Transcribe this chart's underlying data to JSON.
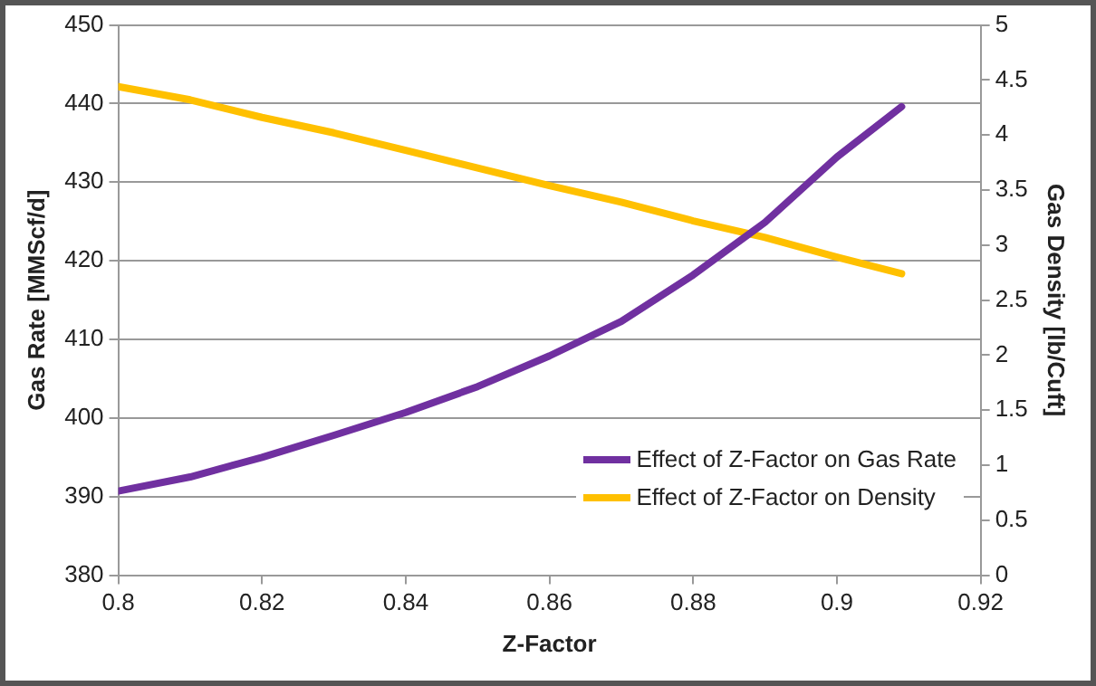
{
  "chart_data": {
    "type": "line",
    "xlabel": "Z-Factor",
    "ylabel": "Gas Rate [MMScf/d]",
    "y2label": "Gas Density [lb/Cuft]",
    "x": [
      0.8,
      0.81,
      0.82,
      0.83,
      0.84,
      0.85,
      0.86,
      0.87,
      0.88,
      0.89,
      0.9,
      0.909
    ],
    "series": [
      {
        "name": "Effect of Z-Factor on Gas Rate",
        "color": "#7030a0",
        "values": [
          390.7,
          392.5,
          395.0,
          397.8,
          400.7,
          404.0,
          407.9,
          412.3,
          418.2,
          424.9,
          433.2,
          439.6
        ]
      },
      {
        "name": "Effect of Z-Factor on Density",
        "color": "#ffc000",
        "axis": "y2",
        "values": [
          4.44,
          4.32,
          4.16,
          4.02,
          3.86,
          3.7,
          3.54,
          3.39,
          3.22,
          3.07,
          2.89,
          2.74
        ]
      }
    ],
    "xlim": [
      0.8,
      0.92
    ],
    "xticks": [
      0.8,
      0.82,
      0.84,
      0.86,
      0.88,
      0.9,
      0.92
    ],
    "ylim": [
      380,
      450
    ],
    "yticks": [
      380,
      390,
      400,
      410,
      420,
      430,
      440,
      450
    ],
    "y2lim": [
      0,
      5
    ],
    "y2ticks": [
      0,
      0.5,
      1,
      1.5,
      2,
      2.5,
      3,
      3.5,
      4,
      4.5,
      5
    ],
    "grid": "y",
    "legend": "bottom right",
    "marker": "none",
    "line_style": "solid"
  }
}
